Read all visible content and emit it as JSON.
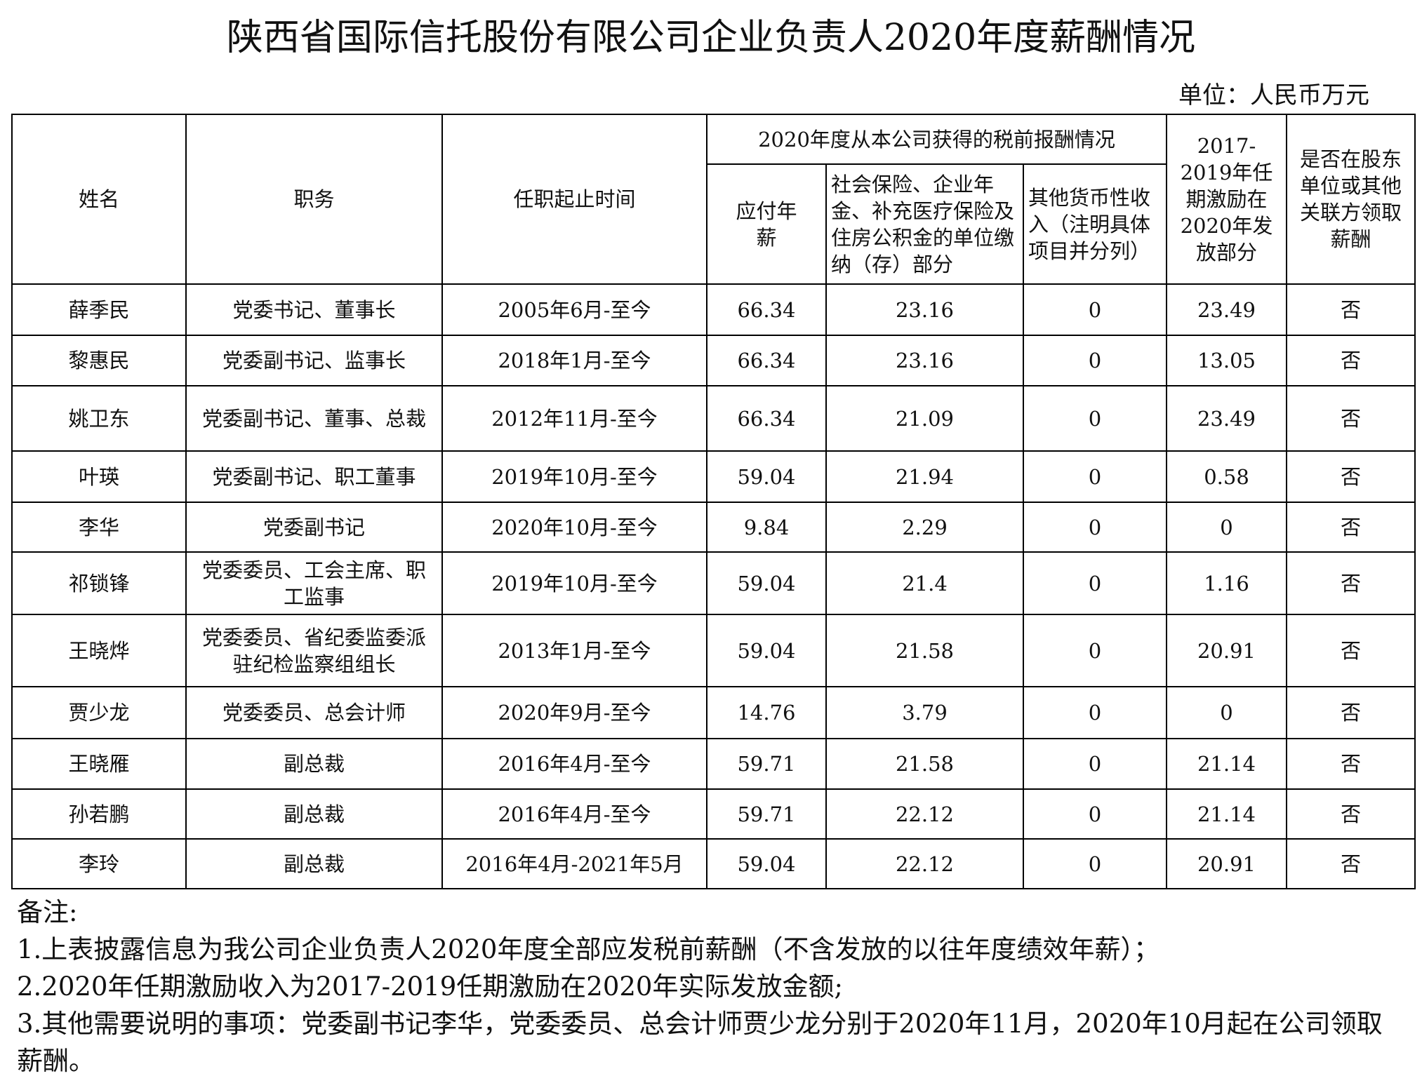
{
  "title": "陕西省国际信托股份有限公司企业负责人2020年度薪酬情况",
  "unit": "单位：人民币万元",
  "headers": {
    "name": "姓名",
    "position": "职务",
    "tenure": "任职起止时间",
    "group": "2020年度从本公司获得的税前报酬情况",
    "salary": "应付年薪",
    "insurance": "社会保险、企业年金、补充医疗保险及住房公积金的单位缴纳（存）部分",
    "other": "其他货币性收入（注明具体项目并分列）",
    "incentive": "2017-2019年任期激励在2020年发放部分",
    "related": "是否在股东单位或其他关联方领取薪酬"
  },
  "rows": [
    {
      "name": "薛季民",
      "position": "党委书记、董事长",
      "tenure": "2005年6月-至今",
      "salary": "66.34",
      "insurance": "23.16",
      "other": "0",
      "incentive": "23.49",
      "related": "否"
    },
    {
      "name": "黎惠民",
      "position": "党委副书记、监事长",
      "tenure": "2018年1月-至今",
      "salary": "66.34",
      "insurance": "23.16",
      "other": "0",
      "incentive": "13.05",
      "related": "否"
    },
    {
      "name": "姚卫东",
      "position": "党委副书记、董事、总裁",
      "tenure": "2012年11月-至今",
      "salary": "66.34",
      "insurance": "21.09",
      "other": "0",
      "incentive": "23.49",
      "related": "否"
    },
    {
      "name": "叶瑛",
      "position": "党委副书记、职工董事",
      "tenure": "2019年10月-至今",
      "salary": "59.04",
      "insurance": "21.94",
      "other": "0",
      "incentive": "0.58",
      "related": "否"
    },
    {
      "name": "李华",
      "position": "党委副书记",
      "tenure": "2020年10月-至今",
      "salary": "9.84",
      "insurance": "2.29",
      "other": "0",
      "incentive": "0",
      "related": "否"
    },
    {
      "name": "祁锁锋",
      "position": "党委委员、工会主席、职工监事",
      "tenure": "2019年10月-至今",
      "salary": "59.04",
      "insurance": "21.4",
      "other": "0",
      "incentive": "1.16",
      "related": "否"
    },
    {
      "name": "王晓烨",
      "position": "党委委员、省纪委监委派驻纪检监察组组长",
      "tenure": "2013年1月-至今",
      "salary": "59.04",
      "insurance": "21.58",
      "other": "0",
      "incentive": "20.91",
      "related": "否"
    },
    {
      "name": "贾少龙",
      "position": "党委委员、总会计师",
      "tenure": "2020年9月-至今",
      "salary": "14.76",
      "insurance": "3.79",
      "other": "0",
      "incentive": "0",
      "related": "否"
    },
    {
      "name": "王晓雁",
      "position": "副总裁",
      "tenure": "2016年4月-至今",
      "salary": "59.71",
      "insurance": "21.58",
      "other": "0",
      "incentive": "21.14",
      "related": "否"
    },
    {
      "name": "孙若鹏",
      "position": "副总裁",
      "tenure": "2016年4月-至今",
      "salary": "59.71",
      "insurance": "22.12",
      "other": "0",
      "incentive": "21.14",
      "related": "否"
    },
    {
      "name": "李玲",
      "position": "副总裁",
      "tenure": "2016年4月-2021年5月",
      "salary": "59.04",
      "insurance": "22.12",
      "other": "0",
      "incentive": "20.91",
      "related": "否"
    }
  ],
  "notes": {
    "heading": "备注:",
    "items": [
      "1.上表披露信息为我公司企业负责人2020年度全部应发税前薪酬（不含发放的以往年度绩效年薪）；",
      "2.2020年任期激励收入为2017-2019任期激励在2020年实际发放金额;",
      "3.其他需要说明的事项：党委副书记李华，党委委员、总会计师贾少龙分别于2020年11月，2020年10月起在公司领取薪酬。"
    ]
  }
}
